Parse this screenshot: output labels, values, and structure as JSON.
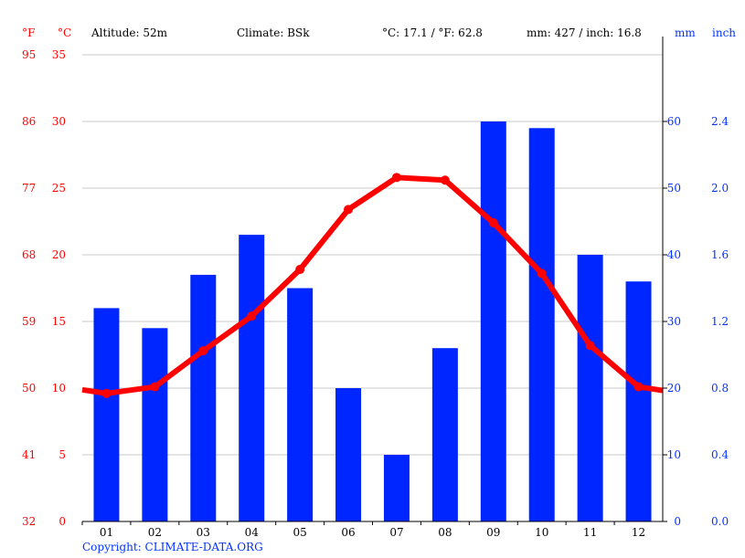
{
  "header": {
    "f_unit": "°F",
    "c_unit": "°C",
    "altitude": "Altitude: 52m",
    "climate": "Climate: BSk",
    "temp_avg": "°C: 17.1 / °F: 62.8",
    "precip_total": "mm: 427 / inch: 16.8",
    "mm_unit": "mm",
    "inch_unit": "inch"
  },
  "footer": {
    "copyright": "Copyright: CLIMATE-DATA.ORG"
  },
  "colors": {
    "temp": "#ff0000",
    "precip": "#0026ff",
    "grid": "#c8c8c8",
    "axis_left": "#ff0000",
    "axis_right": "#0033ff"
  },
  "chart_data": {
    "type": "bar",
    "title": "",
    "categories": [
      "01",
      "02",
      "03",
      "04",
      "05",
      "06",
      "07",
      "08",
      "09",
      "10",
      "11",
      "12"
    ],
    "series": [
      {
        "name": "Precipitation (mm)",
        "type": "bar",
        "axis": "right",
        "values": [
          32,
          29,
          37,
          43,
          35,
          20,
          10,
          26,
          60,
          59,
          40,
          36
        ]
      },
      {
        "name": "Temperature (°C)",
        "type": "line",
        "axis": "left",
        "values": [
          9.6,
          10.1,
          12.8,
          15.4,
          18.9,
          23.4,
          25.8,
          25.6,
          22.4,
          18.6,
          13.2,
          10.1
        ]
      }
    ],
    "left_axis_c": {
      "ticks": [
        0,
        5,
        10,
        15,
        20,
        25,
        30,
        35
      ],
      "ylim": [
        0,
        35
      ]
    },
    "left_axis_f": {
      "ticks": [
        32,
        41,
        50,
        59,
        68,
        77,
        86,
        95
      ]
    },
    "right_axis_mm": {
      "ticks": [
        0,
        10,
        20,
        30,
        40,
        50,
        60
      ],
      "ylim": [
        0,
        70
      ]
    },
    "right_axis_inch": {
      "ticks": [
        "0.0",
        "0.4",
        "0.8",
        "1.2",
        "1.6",
        "2.0",
        "2.4"
      ]
    },
    "grid": true
  }
}
